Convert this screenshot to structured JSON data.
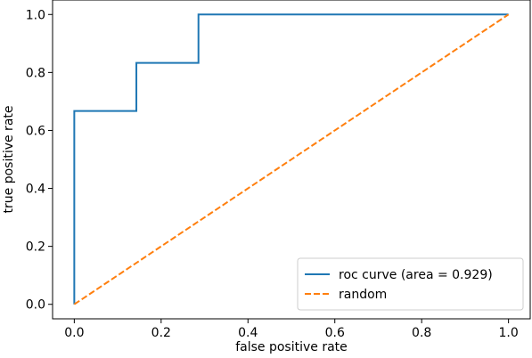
{
  "chart_data": {
    "type": "line",
    "title": "",
    "xlabel": "false positive rate",
    "ylabel": "true positive rate",
    "xlim": [
      -0.05,
      1.05
    ],
    "ylim": [
      -0.05,
      1.05
    ],
    "xticks": [
      "0.0",
      "0.2",
      "0.4",
      "0.6",
      "0.8",
      "1.0"
    ],
    "yticks": [
      "0.0",
      "0.2",
      "0.4",
      "0.6",
      "0.8",
      "1.0"
    ],
    "grid": false,
    "legend_position": "lower-right",
    "series": [
      {
        "name": "roc curve (area = 0.929)",
        "color": "#1f77b4",
        "style": "solid",
        "x": [
          0.0,
          0.0,
          0.143,
          0.143,
          0.286,
          0.286,
          1.0
        ],
        "y": [
          0.0,
          0.667,
          0.667,
          0.833,
          0.833,
          1.0,
          1.0
        ]
      },
      {
        "name": "random",
        "color": "#ff7f0e",
        "style": "dashed",
        "x": [
          0.0,
          1.0
        ],
        "y": [
          0.0,
          1.0
        ]
      }
    ]
  }
}
